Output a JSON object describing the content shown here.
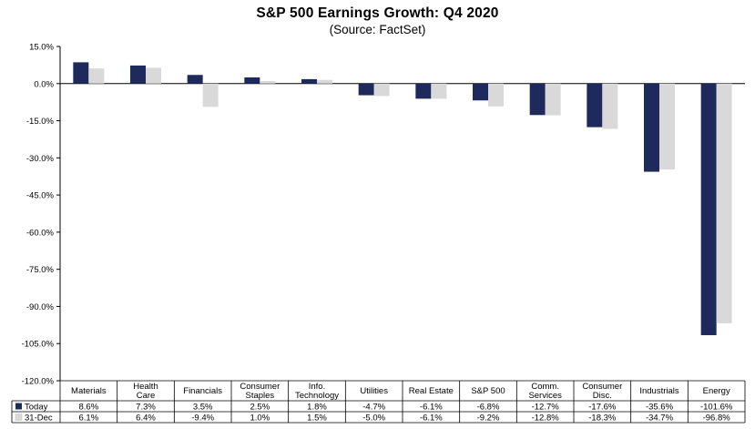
{
  "title": "S&P 500 Earnings Growth: Q4 2020",
  "subtitle": "(Source: FactSet)",
  "chart_data": {
    "type": "bar",
    "title": "S&P 500 Earnings Growth: Q4 2020",
    "subtitle": "(Source: FactSet)",
    "xlabel": "",
    "ylabel": "",
    "ylim": [
      -120,
      15
    ],
    "ytick_step": 15,
    "ytick_labels": [
      "15.0%",
      "0.0%",
      "-15.0%",
      "-30.0%",
      "-45.0%",
      "-60.0%",
      "-75.0%",
      "-90.0%",
      "-105.0%",
      "-120.0%"
    ],
    "grid": false,
    "legend_placement": "bottom-left data table",
    "categories": [
      [
        "Materials"
      ],
      [
        "Health",
        "Care"
      ],
      [
        "Financials"
      ],
      [
        "Consumer",
        "Staples"
      ],
      [
        "Info.",
        "Technology"
      ],
      [
        "Utilities"
      ],
      [
        "Real Estate"
      ],
      [
        "S&P 500"
      ],
      [
        "Comm.",
        "Services"
      ],
      [
        "Consumer",
        "Disc."
      ],
      [
        "Industrials"
      ],
      [
        "Energy"
      ]
    ],
    "series": [
      {
        "name": "Today",
        "color": "#1f2a5c",
        "values": [
          8.6,
          7.3,
          3.5,
          2.5,
          1.8,
          -4.7,
          -6.1,
          -6.8,
          -12.7,
          -17.6,
          -35.6,
          -101.6
        ],
        "labels": [
          "8.6%",
          "7.3%",
          "3.5%",
          "2.5%",
          "1.8%",
          "-4.7%",
          "-6.1%",
          "-6.8%",
          "-12.7%",
          "-17.6%",
          "-35.6%",
          "-101.6%"
        ]
      },
      {
        "name": "31-Dec",
        "color": "#d9d9d9",
        "values": [
          6.1,
          6.4,
          -9.4,
          1.0,
          1.5,
          -5.0,
          -6.1,
          -9.2,
          -12.8,
          -18.3,
          -34.7,
          -96.8
        ],
        "labels": [
          "6.1%",
          "6.4%",
          "-9.4%",
          "1.0%",
          "1.5%",
          "-5.0%",
          "-6.1%",
          "-9.2%",
          "-12.8%",
          "-18.3%",
          "-34.7%",
          "-96.8%"
        ]
      }
    ]
  }
}
